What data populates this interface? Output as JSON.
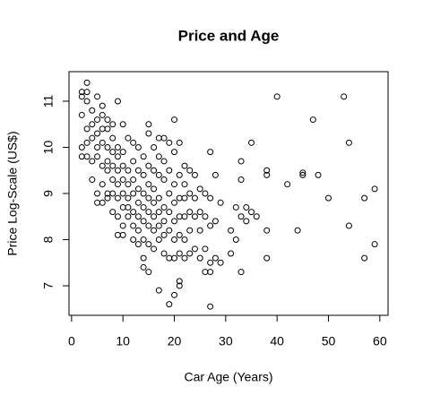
{
  "chart_data": {
    "type": "scatter",
    "title": "Price and Age",
    "x_label": "Car Age (Years)",
    "y_label": "Price Log-Scale (US$)",
    "x": [
      2,
      2,
      2,
      2,
      2,
      3,
      3,
      3,
      3,
      3,
      3,
      4,
      4,
      4,
      4,
      4,
      5,
      5,
      5,
      5,
      5,
      5,
      5,
      6,
      6,
      6,
      6,
      6,
      6,
      6,
      7,
      7,
      7,
      7,
      7,
      7,
      7,
      8,
      8,
      8,
      8,
      8,
      8,
      8,
      9,
      9,
      9,
      9,
      9,
      9,
      9,
      9,
      10,
      10,
      10,
      10,
      10,
      10,
      10,
      10,
      11,
      11,
      11,
      11,
      11,
      11,
      12,
      12,
      12,
      12,
      12,
      12,
      12,
      13,
      13,
      13,
      13,
      13,
      13,
      13,
      14,
      14,
      14,
      14,
      14,
      14,
      14,
      14,
      15,
      15,
      15,
      15,
      15,
      15,
      15,
      15,
      15,
      16,
      16,
      16,
      16,
      16,
      16,
      16,
      17,
      17,
      17,
      17,
      17,
      17,
      17,
      17,
      18,
      18,
      18,
      18,
      18,
      18,
      18,
      19,
      19,
      19,
      19,
      19,
      19,
      19,
      20,
      20,
      20,
      20,
      20,
      20,
      20,
      20,
      21,
      21,
      21,
      21,
      21,
      21,
      21,
      21,
      22,
      22,
      22,
      22,
      22,
      22,
      23,
      23,
      23,
      23,
      23,
      24,
      24,
      24,
      24,
      25,
      25,
      25,
      25,
      26,
      26,
      26,
      26,
      27,
      27,
      27,
      27,
      27,
      27,
      28,
      28,
      28,
      29,
      29,
      31,
      31,
      32,
      32,
      33,
      33,
      33,
      33,
      34,
      34,
      35,
      35,
      36,
      38,
      38,
      38,
      38,
      40,
      42,
      44,
      45,
      45,
      47,
      48,
      50,
      53,
      54,
      54,
      57,
      57,
      59,
      59
    ],
    "y": [
      11.2,
      11.1,
      10.7,
      10.0,
      9.8,
      11.4,
      11.2,
      11.0,
      10.4,
      10.1,
      9.8,
      10.8,
      10.5,
      10.2,
      9.7,
      9.3,
      11.1,
      10.6,
      10.3,
      10.0,
      9.8,
      9.0,
      8.8,
      10.9,
      10.7,
      10.4,
      10.1,
      9.6,
      9.2,
      8.8,
      10.6,
      10.4,
      10.0,
      9.7,
      9.5,
      9.0,
      8.9,
      10.5,
      10.2,
      9.9,
      9.6,
      9.3,
      9.0,
      8.6,
      11.0,
      10.0,
      9.8,
      9.5,
      9.2,
      8.9,
      8.5,
      8.1,
      10.5,
      9.9,
      9.6,
      9.3,
      9.0,
      8.7,
      8.3,
      8.1,
      10.2,
      9.5,
      9.2,
      8.9,
      8.7,
      8.5,
      10.1,
      9.7,
      9.3,
      9.0,
      8.6,
      8.3,
      8.0,
      10.0,
      9.5,
      9.1,
      8.8,
      8.5,
      8.2,
      7.9,
      9.8,
      9.4,
      9.0,
      8.7,
      8.4,
      8.0,
      7.6,
      7.4,
      10.5,
      10.3,
      9.6,
      9.2,
      8.9,
      8.6,
      8.3,
      7.9,
      7.3,
      10.0,
      9.5,
      9.1,
      8.8,
      8.5,
      8.2,
      7.8,
      10.2,
      9.8,
      9.4,
      8.9,
      8.6,
      8.3,
      8.0,
      6.9,
      10.2,
      9.7,
      9.3,
      8.7,
      8.4,
      8.1,
      7.7,
      10.1,
      9.5,
      9.0,
      8.6,
      8.2,
      7.6,
      6.6,
      10.6,
      9.9,
      9.2,
      8.8,
      8.4,
      8.0,
      7.6,
      6.8,
      10.1,
      9.4,
      8.9,
      8.5,
      8.1,
      7.7,
      7.1,
      7.0,
      9.6,
      9.2,
      8.9,
      8.5,
      8.0,
      7.6,
      9.5,
      9.0,
      8.6,
      8.2,
      7.7,
      9.4,
      8.9,
      8.5,
      7.8,
      9.1,
      8.6,
      8.2,
      7.6,
      9.0,
      8.5,
      7.8,
      7.3,
      9.9,
      8.9,
      8.3,
      7.5,
      7.3,
      6.55,
      9.4,
      8.4,
      7.6,
      8.8,
      7.5,
      8.2,
      7.7,
      8.7,
      8.0,
      9.7,
      9.3,
      8.5,
      7.3,
      8.7,
      8.4,
      10.1,
      8.6,
      8.5,
      9.5,
      9.4,
      8.2,
      7.6,
      11.1,
      9.2,
      8.2,
      9.4,
      9.45,
      10.6,
      9.4,
      8.9,
      11.1,
      10.1,
      8.3,
      8.9,
      7.6,
      9.1,
      7.9
    ],
    "xlim": [
      -0.5,
      61.6
    ],
    "ylim": [
      6.36,
      11.64
    ],
    "xticks": [
      0,
      10,
      20,
      30,
      40,
      50,
      60
    ],
    "yticks": [
      7,
      8,
      9,
      10,
      11
    ]
  }
}
